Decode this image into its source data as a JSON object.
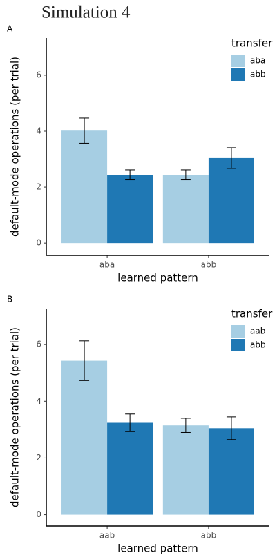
{
  "title": "Simulation 4",
  "chart_data": [
    {
      "type": "bar",
      "tag": "A",
      "x_label": "learned pattern",
      "y_label": "default-mode operations (per trial)",
      "legend_title": "transfer",
      "categories": [
        "aba",
        "abb"
      ],
      "series": [
        {
          "name": "aba",
          "color": "#a6cee3",
          "values": [
            4.02,
            2.44
          ],
          "errors": [
            0.45,
            0.18
          ]
        },
        {
          "name": "abb",
          "color": "#1f78b4",
          "values": [
            2.44,
            3.04
          ],
          "errors": [
            0.18,
            0.37
          ]
        }
      ],
      "ylim": [
        -0.44,
        7.33
      ],
      "yticks": [
        0,
        2,
        4,
        6
      ]
    },
    {
      "type": "bar",
      "tag": "B",
      "x_label": "learned pattern",
      "y_label": "default-mode operations (per trial)",
      "legend_title": "transfer",
      "categories": [
        "aab",
        "abb"
      ],
      "series": [
        {
          "name": "aab",
          "color": "#a6cee3",
          "values": [
            5.43,
            3.15
          ],
          "errors": [
            0.7,
            0.25
          ]
        },
        {
          "name": "abb",
          "color": "#1f78b4",
          "values": [
            3.24,
            3.05
          ],
          "errors": [
            0.31,
            0.4
          ]
        }
      ],
      "ylim": [
        -0.4,
        7.27
      ],
      "yticks": [
        0,
        2,
        4,
        6
      ]
    }
  ]
}
